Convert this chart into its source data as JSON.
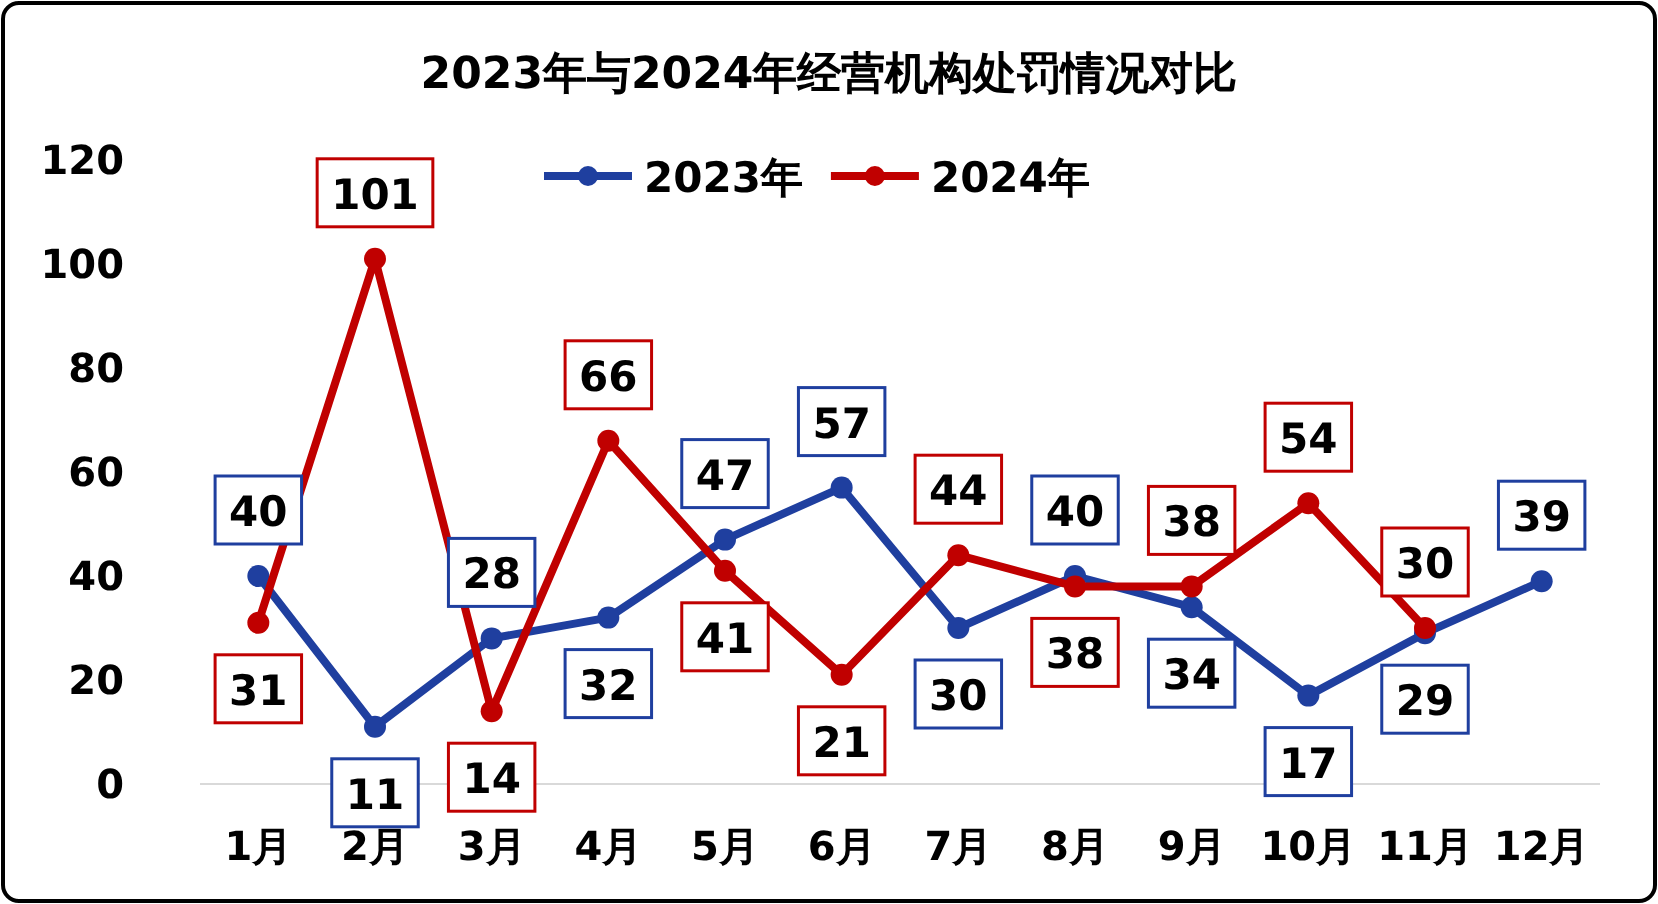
{
  "chart_data": {
    "type": "line",
    "title": "2023年与2024年经营机构处罚情况对比",
    "categories": [
      "1月",
      "2月",
      "3月",
      "4月",
      "5月",
      "6月",
      "7月",
      "8月",
      "9月",
      "10月",
      "11月",
      "12月"
    ],
    "series": [
      {
        "name": "2023年",
        "color": "#1f3f9f",
        "values": [
          40,
          11,
          28,
          32,
          47,
          57,
          30,
          40,
          34,
          17,
          29,
          39
        ]
      },
      {
        "name": "2024年",
        "color": "#c00000",
        "values": [
          31,
          101,
          14,
          66,
          41,
          21,
          44,
          38,
          38,
          54,
          30,
          null
        ]
      }
    ],
    "ylim": [
      0,
      120
    ],
    "yticks": [
      0,
      20,
      40,
      60,
      80,
      100,
      120
    ],
    "grid": false,
    "legend": "top",
    "marker": "circle",
    "line_style": "solid",
    "data_labels": true
  }
}
